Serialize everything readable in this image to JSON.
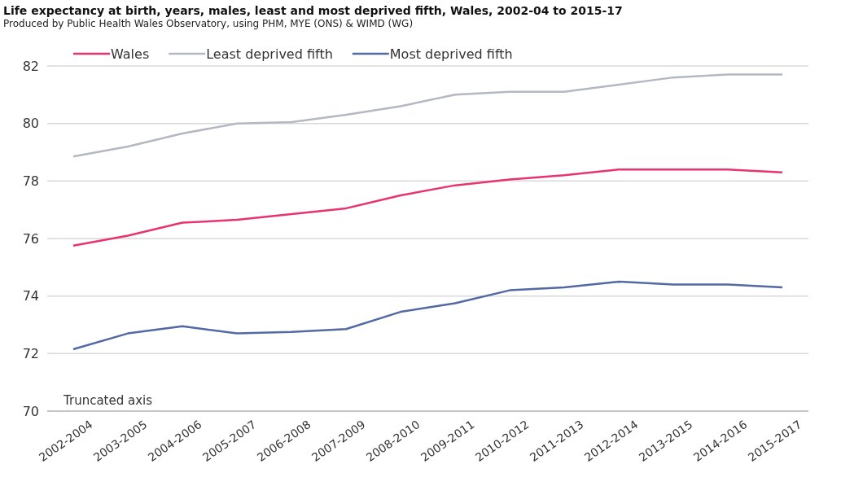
{
  "chart_data": {
    "type": "line",
    "title": "Life expectancy at birth, years, males, least and most deprived fifth, Wales, 2002-04 to 2015-17",
    "subtitle": "Produced by Public Health Wales Observatory, using PHM, MYE (ONS) & WIMD (WG)",
    "categories": [
      "2002-2004",
      "2003-2005",
      "2004-2006",
      "2005-2007",
      "2006-2008",
      "2007-2009",
      "2008-2010",
      "2009-2011",
      "2010-2012",
      "2011-2013",
      "2012-2014",
      "2013-2015",
      "2014-2016",
      "2015-2017"
    ],
    "series": [
      {
        "name": "Wales",
        "color": "#e8336d",
        "values": [
          75.75,
          76.1,
          76.55,
          76.65,
          76.85,
          77.05,
          77.5,
          77.85,
          78.05,
          78.2,
          78.4,
          78.4,
          78.4,
          78.3
        ]
      },
      {
        "name": "Least deprived fifth",
        "color": "#b4b8c4",
        "values": [
          78.85,
          79.2,
          79.65,
          80.0,
          80.05,
          80.3,
          80.6,
          81.0,
          81.1,
          81.1,
          81.35,
          81.6,
          81.7,
          81.7
        ]
      },
      {
        "name": "Most deprived fifth",
        "color": "#5468a4",
        "values": [
          72.15,
          72.7,
          72.95,
          72.7,
          72.75,
          72.85,
          73.45,
          73.75,
          74.2,
          74.3,
          74.5,
          74.4,
          74.4,
          74.3
        ]
      }
    ],
    "ylim": [
      70,
      82
    ],
    "yticks": [
      70,
      72,
      74,
      76,
      78,
      80,
      82
    ],
    "grid": "y",
    "legend": "top left",
    "marker": "none",
    "line_style": "solid",
    "annotations": [
      "Truncated axis"
    ]
  }
}
